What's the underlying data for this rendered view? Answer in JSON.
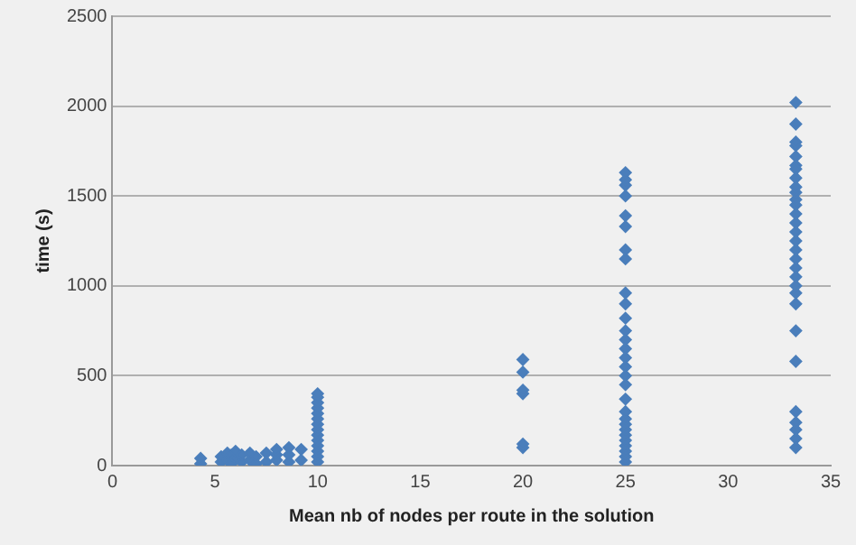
{
  "chart_data": {
    "type": "scatter",
    "xlabel": "Mean nb of nodes per route in the solution",
    "ylabel": "time (s)",
    "xlim": [
      0,
      35
    ],
    "xticks": [
      0,
      5,
      10,
      15,
      20,
      25,
      30,
      35
    ],
    "ylim": [
      0,
      2500
    ],
    "yticks": [
      0,
      500,
      1000,
      1500,
      2000,
      2500
    ],
    "grid": "y",
    "legend": false,
    "marker": "diamond",
    "series": [
      {
        "color": "#4a7ebb",
        "x": [
          4.3,
          4.3,
          5.3,
          5.3,
          5.6,
          5.6,
          5.8,
          5.8,
          6.0,
          6.0,
          6.3,
          6.3,
          6.7,
          6.7,
          7.0,
          7.0,
          7.5,
          7.5,
          8.0,
          8.0,
          8.0,
          8.6,
          8.6,
          8.6,
          9.2,
          9.2,
          10,
          10,
          10,
          10,
          10,
          10,
          10,
          10,
          10,
          10,
          10,
          10,
          10,
          10,
          20,
          20,
          20,
          20,
          20,
          20,
          25,
          25,
          25,
          25,
          25,
          25,
          25,
          25,
          25,
          25,
          25,
          25,
          25,
          25,
          25,
          25,
          25,
          25,
          25,
          25,
          25,
          25,
          25,
          25,
          25,
          25,
          25,
          25,
          25,
          33.3,
          33.3,
          33.3,
          33.3,
          33.3,
          33.3,
          33.3,
          33.3,
          33.3,
          33.3,
          33.3,
          33.3,
          33.3,
          33.3,
          33.3,
          33.3,
          33.3,
          33.3,
          33.3,
          33.3,
          33.3,
          33.3,
          33.3,
          33.3,
          33.3,
          33.3,
          33.3,
          33.3,
          33.3,
          33.3
        ],
        "values": [
          10,
          40,
          20,
          50,
          30,
          70,
          10,
          60,
          40,
          80,
          20,
          60,
          30,
          70,
          10,
          50,
          20,
          70,
          30,
          60,
          90,
          20,
          60,
          100,
          30,
          90,
          20,
          50,
          80,
          110,
          140,
          170,
          200,
          230,
          260,
          290,
          320,
          350,
          380,
          400,
          100,
          120,
          400,
          420,
          520,
          590,
          20,
          50,
          80,
          110,
          140,
          170,
          200,
          230,
          260,
          300,
          370,
          450,
          500,
          550,
          600,
          650,
          700,
          750,
          820,
          900,
          960,
          1150,
          1200,
          1330,
          1390,
          1500,
          1560,
          1590,
          1630,
          100,
          150,
          200,
          240,
          300,
          580,
          750,
          900,
          960,
          1000,
          1050,
          1100,
          1150,
          1200,
          1250,
          1300,
          1350,
          1400,
          1450,
          1480,
          1520,
          1600,
          1670,
          1720,
          1780,
          1800,
          1900,
          2020,
          1550,
          1650
        ]
      }
    ]
  }
}
